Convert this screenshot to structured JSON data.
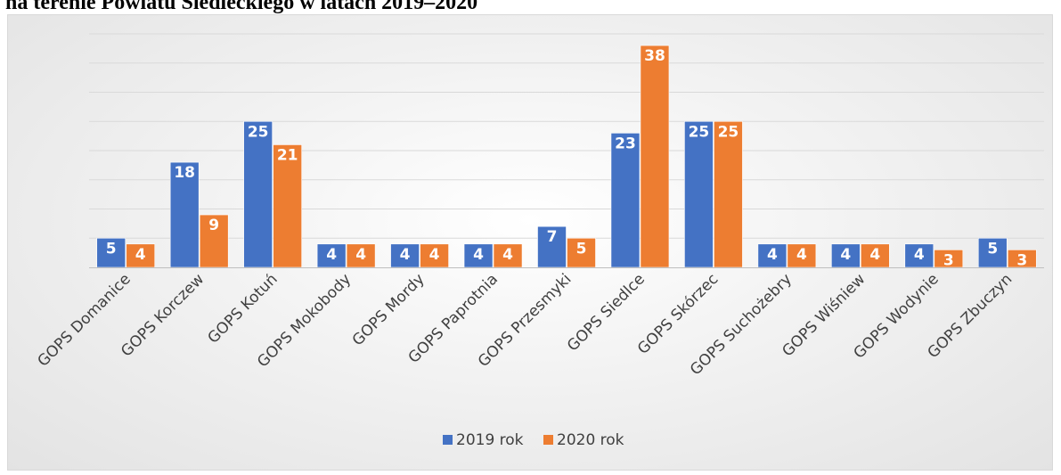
{
  "page_title": "na terenie Powiatu Siedleckiego w latach 2019–2020",
  "colors": {
    "series_2019": "#4472c4",
    "series_2020": "#ed7d31",
    "gridline": "#d9d9d9",
    "axis_line": "#bfbfbf",
    "label_text": "#ffffff",
    "tick_text": "#404040"
  },
  "chart_data": {
    "type": "bar",
    "title": "",
    "xlabel": "",
    "ylabel": "",
    "ylim": [
      0,
      40
    ],
    "grid": true,
    "legend_position": "bottom",
    "categories": [
      "GOPS Domanice",
      "GOPS Korczew",
      "GOPS Kotuń",
      "GOPS Mokobody",
      "GOPS Mordy",
      "GOPS Paprotnia",
      "GOPS Przesmyki",
      "GOPS Siedlce",
      "GOPS Skórzec",
      "GOPS Suchożebry",
      "GOPS Wiśniew",
      "GOPS Wodynie",
      "GOPS Zbuczyn"
    ],
    "series": [
      {
        "name": "2019 rok",
        "values": [
          5,
          18,
          25,
          4,
          4,
          4,
          7,
          23,
          25,
          4,
          4,
          4,
          5
        ]
      },
      {
        "name": "2020 rok",
        "values": [
          4,
          9,
          21,
          4,
          4,
          4,
          5,
          38,
          25,
          4,
          4,
          3,
          3
        ]
      }
    ]
  }
}
